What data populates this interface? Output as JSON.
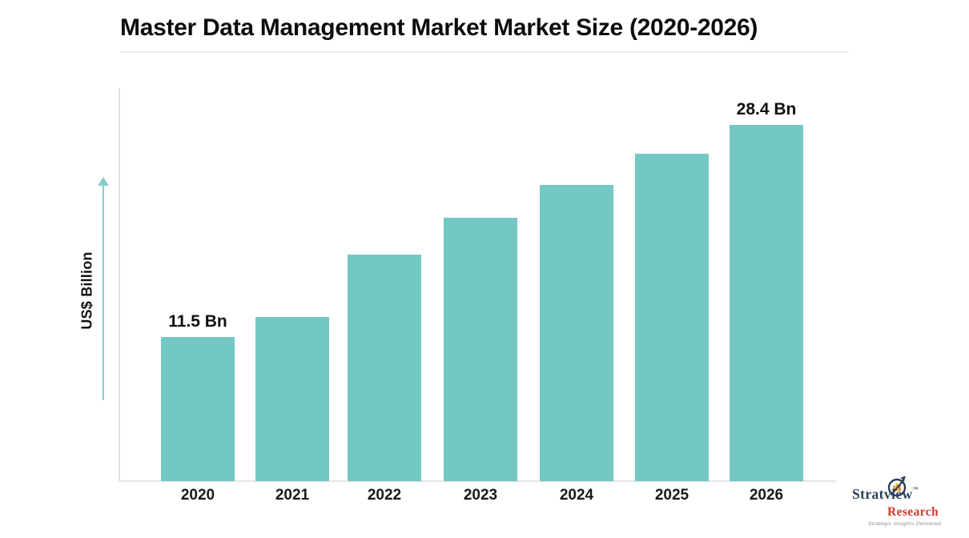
{
  "page": {
    "title": "Master Data Management Market Market Size (2020-2026)"
  },
  "chart_data": {
    "type": "bar",
    "title": "Master Data Management Market Market Size (2020-2026)",
    "categories": [
      "2020",
      "2021",
      "2022",
      "2023",
      "2024",
      "2025",
      "2026"
    ],
    "values": [
      11.5,
      13.1,
      18.1,
      21.0,
      23.6,
      26.1,
      28.4
    ],
    "point_labels": [
      "11.5 Bn",
      "",
      "",
      "",
      "",
      "",
      "28.4 Bn"
    ],
    "xlabel": "",
    "ylabel": "US$ Billion",
    "ylim": [
      0,
      31
    ],
    "grid": false,
    "legend": "none",
    "bar_color": "#73c8c4",
    "axis_color": "#e4e4e6",
    "arrow_color": "#85cfcb"
  },
  "branding": {
    "name": "Stratview",
    "trademark": "™",
    "division": "Research",
    "tagline": "Strategic Insights Delivered",
    "name_color": "#2c3e5a",
    "division_color": "#d13b2a"
  }
}
